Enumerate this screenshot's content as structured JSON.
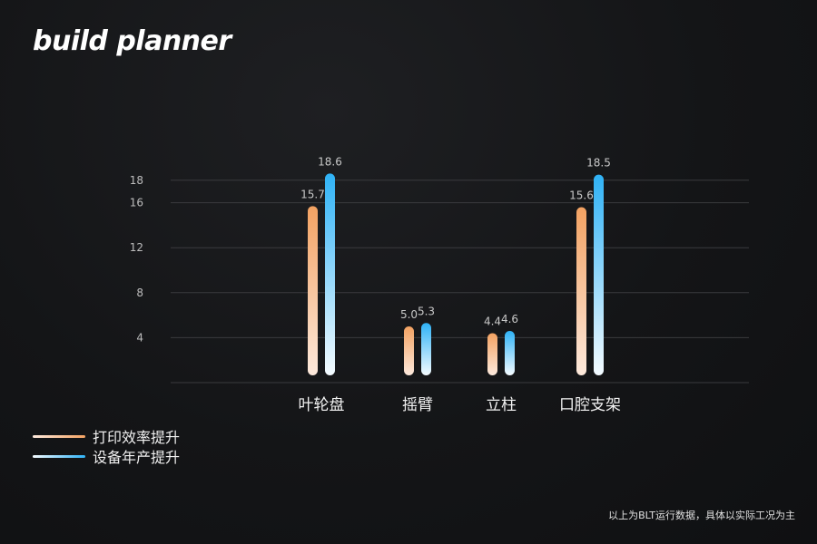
{
  "brand": {
    "logo_text": "build planner"
  },
  "chart_data": {
    "type": "bar",
    "categories": [
      "叶轮盘",
      "摇臂",
      "立柱",
      "口腔支架"
    ],
    "series": [
      {
        "name": "打印效率提升",
        "values": [
          15.7,
          5.0,
          4.4,
          15.6
        ],
        "labels": [
          "15.7",
          "5.0",
          "4.4",
          "15.6"
        ],
        "color": "#f0a060"
      },
      {
        "name": "设备年产提升",
        "values": [
          18.6,
          5.3,
          4.6,
          18.5
        ],
        "labels": [
          "18.6",
          "5.3",
          "4.6",
          "18.5"
        ],
        "color": "#3ab0f0"
      }
    ],
    "yticks": [
      "4",
      "8",
      "12",
      "16",
      "18"
    ],
    "ylim": [
      0,
      20
    ],
    "grid": true,
    "legend_position": "bottom-left"
  },
  "footnote": "以上为BLT运行数据，具体以实际工况为主"
}
